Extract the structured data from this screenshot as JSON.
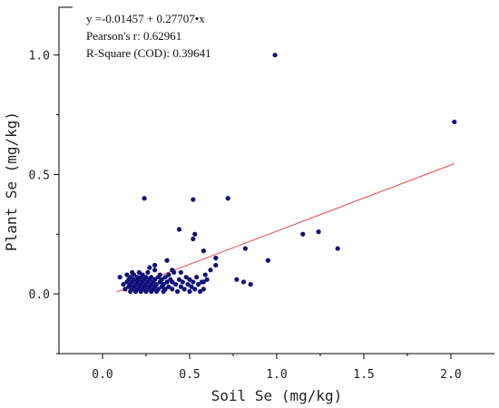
{
  "chart_data": {
    "type": "scatter",
    "xlabel": "Soil Se (mg/kg)",
    "ylabel": "Plant Se (mg/kg)",
    "xlim": [
      -0.25,
      2.25
    ],
    "ylim": [
      -0.25,
      1.2
    ],
    "xticks": [
      0.0,
      0.5,
      1.0,
      1.5,
      2.0
    ],
    "xtick_labels": [
      "0.0",
      "0.5",
      "1.0",
      "1.5",
      "2.0"
    ],
    "yticks": [
      0.0,
      0.5,
      1.0
    ],
    "ytick_labels": [
      "0.0",
      "0.5",
      "1.0"
    ],
    "grid": false,
    "colors": {
      "points": "#10107a",
      "fit_line": "#e8494a",
      "axis": "#000000"
    },
    "annotations": [
      "y =-0.01457 + 0.27707•x",
      "Pearson's r: 0.62961",
      "R-Square (COD): 0.39641"
    ],
    "fit": {
      "intercept": -0.01457,
      "slope": 0.27707,
      "x_range": [
        0.08,
        2.02
      ]
    },
    "points": [
      [
        0.1,
        0.07
      ],
      [
        0.12,
        0.04
      ],
      [
        0.13,
        0.02
      ],
      [
        0.14,
        0.05
      ],
      [
        0.14,
        0.08
      ],
      [
        0.15,
        0.03
      ],
      [
        0.15,
        0.06
      ],
      [
        0.16,
        0.01
      ],
      [
        0.16,
        0.04
      ],
      [
        0.16,
        0.07
      ],
      [
        0.17,
        0.02
      ],
      [
        0.17,
        0.05
      ],
      [
        0.17,
        0.09
      ],
      [
        0.18,
        0.03
      ],
      [
        0.18,
        0.06
      ],
      [
        0.18,
        0.08
      ],
      [
        0.19,
        0.01
      ],
      [
        0.19,
        0.04
      ],
      [
        0.19,
        0.06
      ],
      [
        0.2,
        0.02
      ],
      [
        0.2,
        0.05
      ],
      [
        0.2,
        0.07
      ],
      [
        0.21,
        0.03
      ],
      [
        0.21,
        0.06
      ],
      [
        0.21,
        0.09
      ],
      [
        0.22,
        0.01
      ],
      [
        0.22,
        0.04
      ],
      [
        0.22,
        0.07
      ],
      [
        0.23,
        0.02
      ],
      [
        0.23,
        0.05
      ],
      [
        0.23,
        0.08
      ],
      [
        0.24,
        0.03
      ],
      [
        0.24,
        0.06
      ],
      [
        0.25,
        0.01
      ],
      [
        0.25,
        0.04
      ],
      [
        0.25,
        0.07
      ],
      [
        0.26,
        0.02
      ],
      [
        0.26,
        0.05
      ],
      [
        0.26,
        0.09
      ],
      [
        0.27,
        0.03
      ],
      [
        0.27,
        0.06
      ],
      [
        0.28,
        0.01
      ],
      [
        0.28,
        0.04
      ],
      [
        0.28,
        0.07
      ],
      [
        0.29,
        0.02
      ],
      [
        0.29,
        0.05
      ],
      [
        0.3,
        0.03
      ],
      [
        0.3,
        0.06
      ],
      [
        0.3,
        0.1
      ],
      [
        0.31,
        0.01
      ],
      [
        0.31,
        0.04
      ],
      [
        0.32,
        0.07
      ],
      [
        0.32,
        0.02
      ],
      [
        0.33,
        0.05
      ],
      [
        0.33,
        0.08
      ],
      [
        0.34,
        0.03
      ],
      [
        0.34,
        0.06
      ],
      [
        0.35,
        0.01
      ],
      [
        0.35,
        0.04
      ],
      [
        0.36,
        0.07
      ],
      [
        0.36,
        0.02
      ],
      [
        0.37,
        0.05
      ],
      [
        0.38,
        0.03
      ],
      [
        0.38,
        0.08
      ],
      [
        0.39,
        0.06
      ],
      [
        0.4,
        0.02
      ],
      [
        0.4,
        0.05
      ],
      [
        0.41,
        0.09
      ],
      [
        0.42,
        0.04
      ],
      [
        0.43,
        0.01
      ],
      [
        0.44,
        0.06
      ],
      [
        0.45,
        0.03
      ],
      [
        0.46,
        0.05
      ],
      [
        0.47,
        0.02
      ],
      [
        0.48,
        0.07
      ],
      [
        0.49,
        0.04
      ],
      [
        0.5,
        0.01
      ],
      [
        0.5,
        0.06
      ],
      [
        0.51,
        0.03
      ],
      [
        0.52,
        0.05
      ],
      [
        0.53,
        0.02
      ],
      [
        0.54,
        0.07
      ],
      [
        0.55,
        0.04
      ],
      [
        0.56,
        0.01
      ],
      [
        0.57,
        0.05
      ],
      [
        0.58,
        0.02
      ],
      [
        0.59,
        0.08
      ],
      [
        0.58,
        0.05
      ],
      [
        0.6,
        0.06
      ],
      [
        0.24,
        0.4
      ],
      [
        0.52,
        0.395
      ],
      [
        0.72,
        0.4
      ],
      [
        0.99,
        1.0
      ],
      [
        2.02,
        0.72
      ],
      [
        0.44,
        0.27
      ],
      [
        0.52,
        0.23
      ],
      [
        0.53,
        0.25
      ],
      [
        0.58,
        0.18
      ],
      [
        0.37,
        0.14
      ],
      [
        0.65,
        0.15
      ],
      [
        0.65,
        0.12
      ],
      [
        0.82,
        0.19
      ],
      [
        0.77,
        0.06
      ],
      [
        0.81,
        0.05
      ],
      [
        0.85,
        0.04
      ],
      [
        0.95,
        0.14
      ],
      [
        1.15,
        0.25
      ],
      [
        1.24,
        0.26
      ],
      [
        1.35,
        0.19
      ],
      [
        0.62,
        0.1
      ],
      [
        0.45,
        0.09
      ],
      [
        0.4,
        0.1
      ],
      [
        0.3,
        0.12
      ],
      [
        0.27,
        0.11
      ]
    ]
  }
}
